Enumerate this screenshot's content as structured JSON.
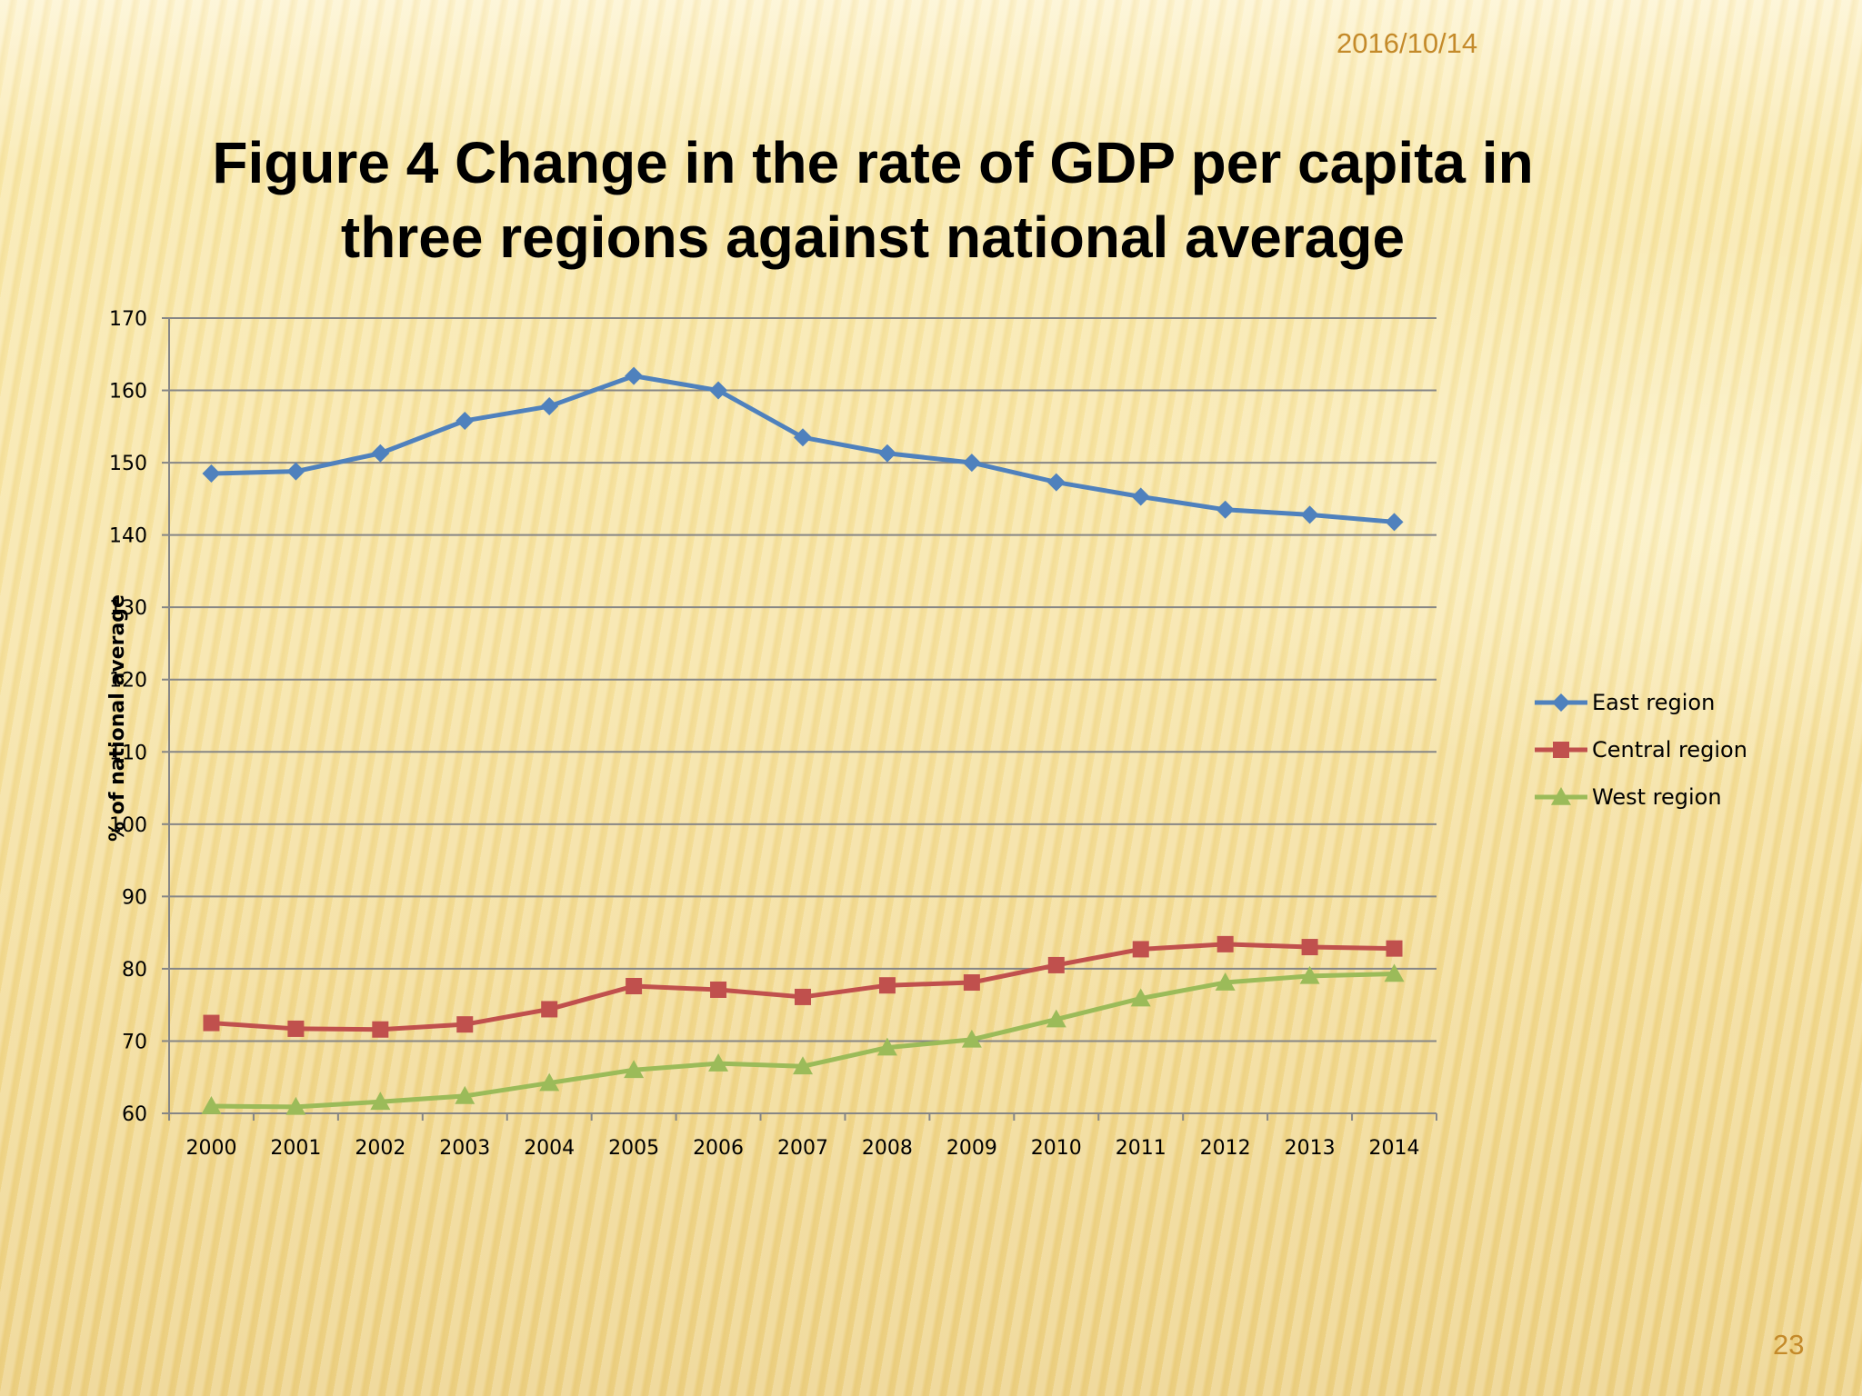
{
  "slide": {
    "date": "2016/10/14",
    "title_line1": "Figure 4  Change in the rate of GDP per capita in",
    "title_line2": "three regions against national average",
    "page_number": "23"
  },
  "colors": {
    "east": "#4f81bd",
    "central": "#c0504d",
    "west": "#9bbb59",
    "gridline": "#868686",
    "axis": "#868686"
  },
  "chart_data": {
    "type": "line",
    "title": "Figure 4  Change in the rate of GDP per capita in three regions against national average",
    "xlabel": "",
    "ylabel": "% of national average",
    "ylim": [
      60,
      170
    ],
    "yticks": [
      60,
      70,
      80,
      90,
      100,
      110,
      120,
      130,
      140,
      150,
      160,
      170
    ],
    "grid": true,
    "legend_position": "right",
    "categories": [
      "2000",
      "2001",
      "2002",
      "2003",
      "2004",
      "2005",
      "2006",
      "2007",
      "2008",
      "2009",
      "2010",
      "2011",
      "2012",
      "2013",
      "2014"
    ],
    "series": [
      {
        "name": "East region",
        "marker": "diamond",
        "color_key": "east",
        "values": [
          148.5,
          148.8,
          151.3,
          155.8,
          157.8,
          162.0,
          160.0,
          153.5,
          151.3,
          150.0,
          147.3,
          145.3,
          143.5,
          142.8,
          141.8
        ]
      },
      {
        "name": "Central region",
        "marker": "square",
        "color_key": "central",
        "values": [
          72.5,
          71.7,
          71.6,
          72.3,
          74.4,
          77.6,
          77.1,
          76.1,
          77.7,
          78.1,
          80.5,
          82.7,
          83.4,
          83.0,
          82.8
        ]
      },
      {
        "name": "West region",
        "marker": "triangle",
        "color_key": "west",
        "values": [
          61.0,
          60.9,
          61.6,
          62.4,
          64.2,
          66.0,
          66.9,
          66.5,
          69.1,
          70.2,
          73.0,
          75.9,
          78.1,
          79.0,
          79.3
        ]
      }
    ]
  }
}
